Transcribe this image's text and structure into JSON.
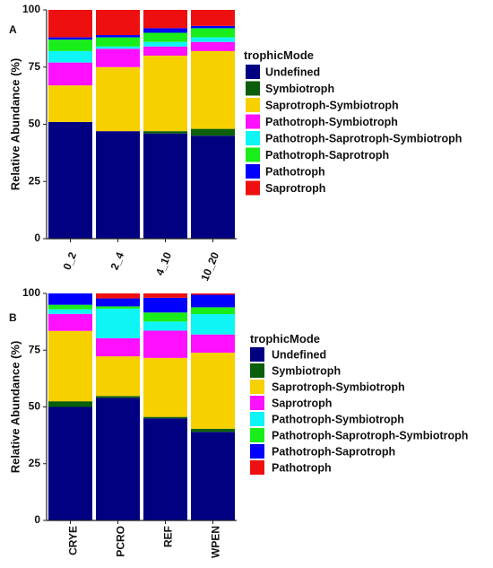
{
  "chart_data": [
    {
      "type": "bar",
      "panel_label": "A",
      "ylabel": "Relative Abundance (%)",
      "xlabel": "",
      "ylim": [
        0,
        100
      ],
      "yticks": [
        "0",
        "25",
        "50",
        "75",
        "100"
      ],
      "categories": [
        "0_2",
        "2_4",
        "4_10",
        "10_20"
      ],
      "legend_title": "trophicMode",
      "legend_position": "right",
      "series": [
        {
          "name": "Undefined",
          "color": "#000080",
          "values": [
            51,
            47,
            46,
            45
          ]
        },
        {
          "name": "Symbiotroph",
          "color": "#0b5e0b",
          "values": [
            0,
            0,
            1,
            3
          ]
        },
        {
          "name": "Saprotroph-Symbiotroph",
          "color": "#f7d000",
          "values": [
            16,
            28,
            33,
            34
          ]
        },
        {
          "name": "Pathotroph-Symbiotroph",
          "color": "#ff10ff",
          "values": [
            10,
            8,
            4,
            4
          ]
        },
        {
          "name": "Pathotroph-Saprotroph-Symbiotroph",
          "color": "#0ff5f5",
          "values": [
            5,
            1,
            2,
            2
          ]
        },
        {
          "name": "Pathotroph-Saprotroph",
          "color": "#1aee1a",
          "values": [
            5,
            4,
            4,
            4
          ]
        },
        {
          "name": "Pathotroph",
          "color": "#0000ff",
          "values": [
            1,
            1,
            2,
            1
          ]
        },
        {
          "name": "Saprotroph",
          "color": "#ee1010",
          "values": [
            12,
            11,
            8,
            7
          ]
        }
      ]
    },
    {
      "type": "bar",
      "panel_label": "B",
      "ylabel": "Relative Abundance (%)",
      "xlabel": "",
      "ylim": [
        0,
        100
      ],
      "yticks": [
        "0",
        "25",
        "50",
        "75",
        "100"
      ],
      "categories": [
        "CRYE",
        "PCRO",
        "REF",
        "WPEN"
      ],
      "legend_title": "trophicMode",
      "legend_position": "right",
      "series": [
        {
          "name": "Undefined",
          "color": "#000080",
          "values": [
            50,
            54,
            45,
            39
          ]
        },
        {
          "name": "Symbiotroph",
          "color": "#0b5e0b",
          "values": [
            2.5,
            0.8,
            0.6,
            1.4
          ]
        },
        {
          "name": "Saprotroph-Symbiotroph",
          "color": "#f7d000",
          "values": [
            31,
            17.5,
            26,
            33.5
          ]
        },
        {
          "name": "Saprotroph",
          "color": "#ff10ff",
          "values": [
            7.5,
            8,
            12,
            8
          ]
        },
        {
          "name": "Pathotroph-Symbiotroph",
          "color": "#0ff5f5",
          "values": [
            2,
            13,
            4,
            9
          ]
        },
        {
          "name": "Pathotroph-Saprotroph-Symbiotroph",
          "color": "#1aee1a",
          "values": [
            2,
            1,
            4,
            3
          ]
        },
        {
          "name": "Pathotroph-Saprotroph",
          "color": "#0000ff",
          "values": [
            5,
            3.5,
            6.5,
            5.5
          ]
        },
        {
          "name": "Pathotroph",
          "color": "#ee1010",
          "values": [
            0,
            2.7,
            1.9,
            0.6
          ]
        }
      ]
    }
  ]
}
